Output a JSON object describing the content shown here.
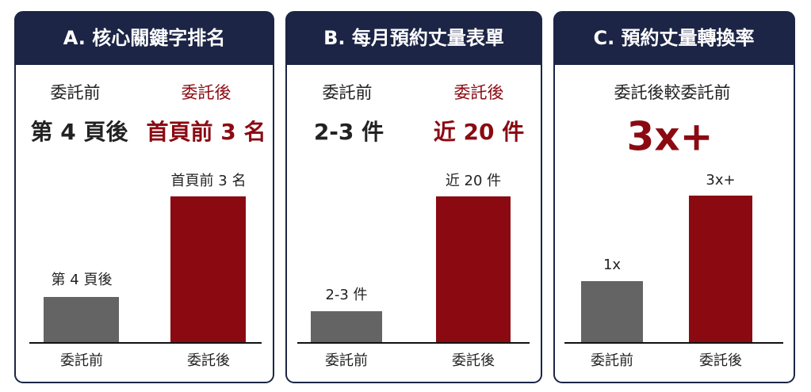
{
  "panels": [
    {
      "header": "A. 核心關鍵字排名",
      "before_label": "委託前",
      "after_label": "委託後",
      "before_value": "第 4 頁後",
      "after_value": "首頁前 3 名",
      "bar_labels": [
        "第 4 頁後",
        "首頁前 3 名"
      ],
      "categories": [
        "委託前",
        "委託後"
      ]
    },
    {
      "header": "B. 每月預約丈量表單",
      "before_label": "委託前",
      "after_label": "委託後",
      "before_value": "2-3 件",
      "after_value": "近 20 件",
      "bar_labels": [
        "2-3 件",
        "近 20 件"
      ],
      "categories": [
        "委託前",
        "委託後"
      ]
    },
    {
      "header": "C. 預約丈量轉換率",
      "subtitle": "委託後較委託前",
      "headline": "3x+",
      "bar_labels": [
        "1x",
        "3x+"
      ],
      "categories": [
        "委託前",
        "委託後"
      ]
    }
  ]
}
